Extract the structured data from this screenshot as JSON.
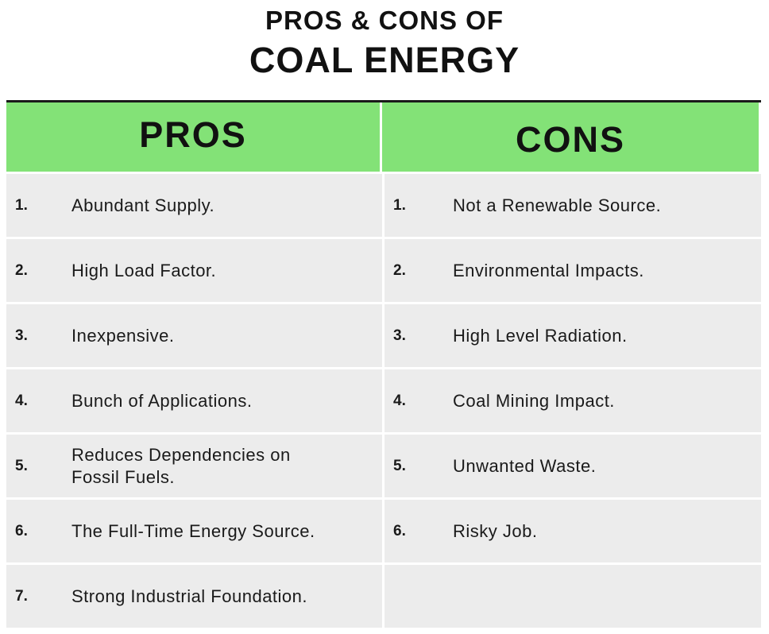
{
  "title": {
    "line1": "PROS & CONS OF",
    "line2": "COAL ENERGY"
  },
  "headers": {
    "pros": "PROS",
    "cons": "CONS"
  },
  "pros": [
    {
      "num": "1.",
      "text": "Abundant Supply."
    },
    {
      "num": "2.",
      "text": "High Load Factor."
    },
    {
      "num": "3.",
      "text": "Inexpensive."
    },
    {
      "num": "4.",
      "text": "Bunch of Applications."
    },
    {
      "num": "5.",
      "text": "Reduces Dependencies on Fossil Fuels."
    },
    {
      "num": "6.",
      "text": "The Full-Time Energy Source."
    },
    {
      "num": "7.",
      "text": "Strong Industrial Foundation."
    }
  ],
  "cons": [
    {
      "num": "1.",
      "text": "Not a Renewable Source."
    },
    {
      "num": "2.",
      "text": "Environmental Impacts."
    },
    {
      "num": "3.",
      "text": "High Level Radiation."
    },
    {
      "num": "4.",
      "text": "Coal Mining Impact."
    },
    {
      "num": "5.",
      "text": "Unwanted Waste."
    },
    {
      "num": "6.",
      "text": "Risky Job."
    }
  ],
  "colors": {
    "header_bg": "#83e277",
    "row_bg": "#ececec",
    "text": "#1a1a1a"
  }
}
